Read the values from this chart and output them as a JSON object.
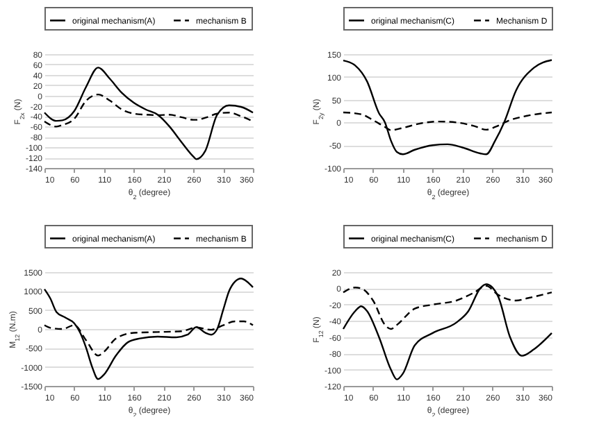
{
  "chart_data": [
    {
      "type": "line",
      "xlabel": "θ$_{2}$ (degree)",
      "ylabel": "F$_{2x}$ (N)",
      "xlim": [
        10,
        360
      ],
      "xticks": [
        10,
        60,
        110,
        160,
        210,
        260,
        310,
        360
      ],
      "ylim": [
        -140,
        80
      ],
      "yticks": [
        -140,
        -120,
        -100,
        -80,
        -60,
        -40,
        -20,
        0,
        20,
        40,
        60,
        80
      ],
      "grid": "y",
      "legend": "top",
      "x": [
        10,
        30,
        40,
        60,
        80,
        100,
        120,
        140,
        160,
        180,
        200,
        220,
        240,
        260,
        265,
        280,
        300,
        320,
        340,
        360
      ],
      "series": [
        {
          "name": "original mechanism(A)",
          "color": "#000000",
          "line_style": "solid",
          "values": [
            -33,
            -49,
            -48,
            -30,
            17,
            54,
            32,
            5,
            -14,
            -27,
            -37,
            -60,
            -90,
            -118,
            -123,
            -107,
            -37,
            -19,
            -22,
            -33
          ]
        },
        {
          "name": "mechanism B",
          "color": "#000000",
          "line_style": "dashed",
          "values": [
            -50,
            -60,
            -57,
            -45,
            -10,
            2,
            -10,
            -27,
            -35,
            -37,
            -38,
            -37,
            -42,
            -47,
            -47,
            -43,
            -35,
            -33,
            -40,
            -50
          ]
        }
      ]
    },
    {
      "type": "line",
      "xlabel": "θ$_{2}$ (degree)",
      "ylabel": "F$_{2y}$ (N)",
      "xlim": [
        10,
        360
      ],
      "xticks": [
        10,
        60,
        110,
        160,
        210,
        260,
        310,
        360
      ],
      "ylim": [
        -100,
        150
      ],
      "yticks": [
        -100,
        -50,
        0,
        50,
        100,
        150
      ],
      "grid": "y",
      "legend": "top",
      "series": [
        {
          "name": "original mechanism(C)",
          "color": "#000000",
          "line_style": "solid",
          "x": [
            10,
            30,
            50,
            70,
            80,
            90,
            100,
            110,
            130,
            160,
            185,
            210,
            240,
            250,
            265,
            280,
            300,
            330,
            360
          ],
          "values": [
            136,
            125,
            90,
            20,
            0,
            -40,
            -65,
            -70,
            -60,
            -50,
            -48,
            -55,
            -68,
            -70,
            -40,
            0,
            70,
            120,
            137
          ]
        },
        {
          "name": "Mechanism D",
          "color": "#000000",
          "line_style": "dashed",
          "x": [
            10,
            40,
            60,
            80,
            90,
            110,
            140,
            170,
            200,
            230,
            250,
            265,
            290,
            320,
            360
          ],
          "values": [
            22,
            18,
            5,
            -10,
            -17,
            -12,
            -2,
            2,
            0,
            -8,
            -16,
            -10,
            5,
            15,
            22
          ]
        }
      ]
    },
    {
      "type": "line",
      "xlabel": "θ$_{2}$ (degree)",
      "ylabel": "M$_{12}$ (N.m)",
      "xlim": [
        10,
        360
      ],
      "xticks": [
        10,
        60,
        110,
        160,
        210,
        260,
        310,
        360
      ],
      "ylim": [
        -1500,
        1500
      ],
      "yticks": [
        -1500,
        -1000,
        -500,
        0,
        500,
        1000,
        1500
      ],
      "grid": "y",
      "legend": "top",
      "series": [
        {
          "name": "original mechanism(A)",
          "color": "#000000",
          "line_style": "solid",
          "x": [
            10,
            20,
            30,
            45,
            60,
            70,
            80,
            90,
            100,
            110,
            130,
            150,
            170,
            200,
            230,
            250,
            265,
            280,
            290,
            300,
            310,
            320,
            330,
            340,
            350,
            360
          ],
          "values": [
            1050,
            800,
            450,
            300,
            150,
            -100,
            -500,
            -1000,
            -1320,
            -1200,
            -700,
            -350,
            -250,
            -200,
            -220,
            -150,
            50,
            -100,
            -150,
            0,
            500,
            1000,
            1250,
            1330,
            1250,
            1100
          ]
        },
        {
          "name": "mechanism B",
          "color": "#000000",
          "line_style": "dashed",
          "x": [
            10,
            20,
            40,
            60,
            80,
            100,
            110,
            130,
            160,
            200,
            240,
            265,
            290,
            310,
            330,
            345,
            360
          ],
          "values": [
            100,
            30,
            0,
            100,
            -300,
            -700,
            -600,
            -250,
            -100,
            -80,
            -60,
            40,
            -20,
            100,
            200,
            200,
            100
          ]
        }
      ]
    },
    {
      "type": "line",
      "xlabel": "θ$_{2}$ (degree)",
      "ylabel": "F$_{12}$ (N)",
      "xlim": [
        10,
        360
      ],
      "xticks": [
        10,
        60,
        110,
        160,
        210,
        260,
        310,
        360
      ],
      "ylim": [
        -120,
        20
      ],
      "yticks": [
        -120,
        -100,
        -80,
        -60,
        -40,
        -20,
        0,
        20
      ],
      "grid": "y",
      "legend": "top",
      "series": [
        {
          "name": "original mechanism(C)",
          "color": "#000000",
          "line_style": "solid",
          "x": [
            10,
            30,
            40,
            50,
            70,
            90,
            100,
            110,
            130,
            160,
            200,
            220,
            240,
            250,
            270,
            290,
            310,
            330,
            360
          ],
          "values": [
            -50,
            -28,
            -22,
            -28,
            -60,
            -100,
            -112,
            -105,
            -70,
            -55,
            -42,
            -28,
            0,
            5,
            -10,
            -60,
            -83,
            -75,
            -55
          ]
        },
        {
          "name": "mechanism D",
          "color": "#000000",
          "line_style": "dashed",
          "x": [
            10,
            30,
            40,
            60,
            80,
            90,
            100,
            130,
            160,
            200,
            230,
            250,
            270,
            300,
            320,
            360
          ],
          "values": [
            -5,
            1,
            0,
            -15,
            -45,
            -50,
            -45,
            -25,
            -20,
            -15,
            -5,
            3,
            -8,
            -15,
            -12,
            -5
          ]
        }
      ]
    }
  ]
}
